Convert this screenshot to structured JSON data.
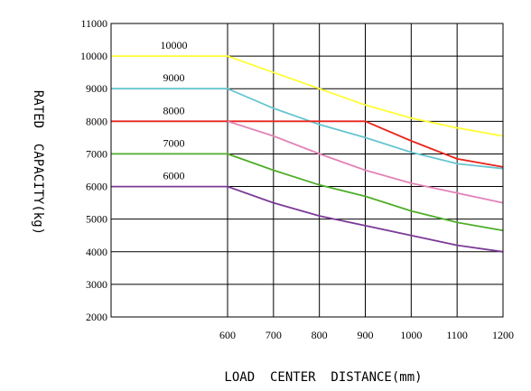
{
  "chart_data": {
    "type": "line",
    "xlabel": "LOAD  CENTER  DISTANCE(mm)",
    "ylabel": "RATED  CAPACITY(kg)",
    "xlim": [
      0,
      1200
    ],
    "ylim": [
      2000,
      11000
    ],
    "x_ticks": [
      600,
      700,
      800,
      900,
      1000,
      1100,
      1200
    ],
    "y_ticks": [
      2000,
      3000,
      4000,
      5000,
      6000,
      7000,
      8000,
      9000,
      10000,
      11000
    ],
    "grid": true,
    "series": [
      {
        "name": "10000",
        "color": "#ffff33",
        "x": [
          0,
          600,
          700,
          800,
          900,
          1000,
          1100,
          1200
        ],
        "y": [
          10000,
          10000,
          9500,
          9000,
          8500,
          8100,
          7800,
          7550
        ]
      },
      {
        "name": "9000",
        "color": "#66c5d0",
        "x": [
          0,
          600,
          700,
          800,
          900,
          1000,
          1100,
          1200
        ],
        "y": [
          9000,
          9000,
          8400,
          7900,
          7500,
          7050,
          6700,
          6550
        ]
      },
      {
        "name": "8000",
        "color": "#e8251d",
        "x": [
          0,
          600,
          700,
          800,
          900,
          1000,
          1100,
          1200
        ],
        "y": [
          8000,
          8000,
          8000,
          8000,
          8000,
          7400,
          6850,
          6600
        ]
      },
      {
        "name": "",
        "color": "#e283b8",
        "x": [
          600,
          700,
          800,
          900,
          1000,
          1100,
          1200
        ],
        "y": [
          8000,
          7550,
          7000,
          6500,
          6100,
          5800,
          5500
        ]
      },
      {
        "name": "7000",
        "color": "#4fae2a",
        "x": [
          0,
          600,
          700,
          800,
          900,
          1000,
          1100,
          1200
        ],
        "y": [
          7000,
          7000,
          6500,
          6050,
          5700,
          5250,
          4900,
          4650
        ]
      },
      {
        "name": "6000",
        "color": "#7b3a96",
        "x": [
          0,
          600,
          700,
          800,
          900,
          1000,
          1100,
          1200
        ],
        "y": [
          6000,
          6000,
          5500,
          5100,
          4800,
          4500,
          4200,
          4000
        ]
      }
    ]
  }
}
